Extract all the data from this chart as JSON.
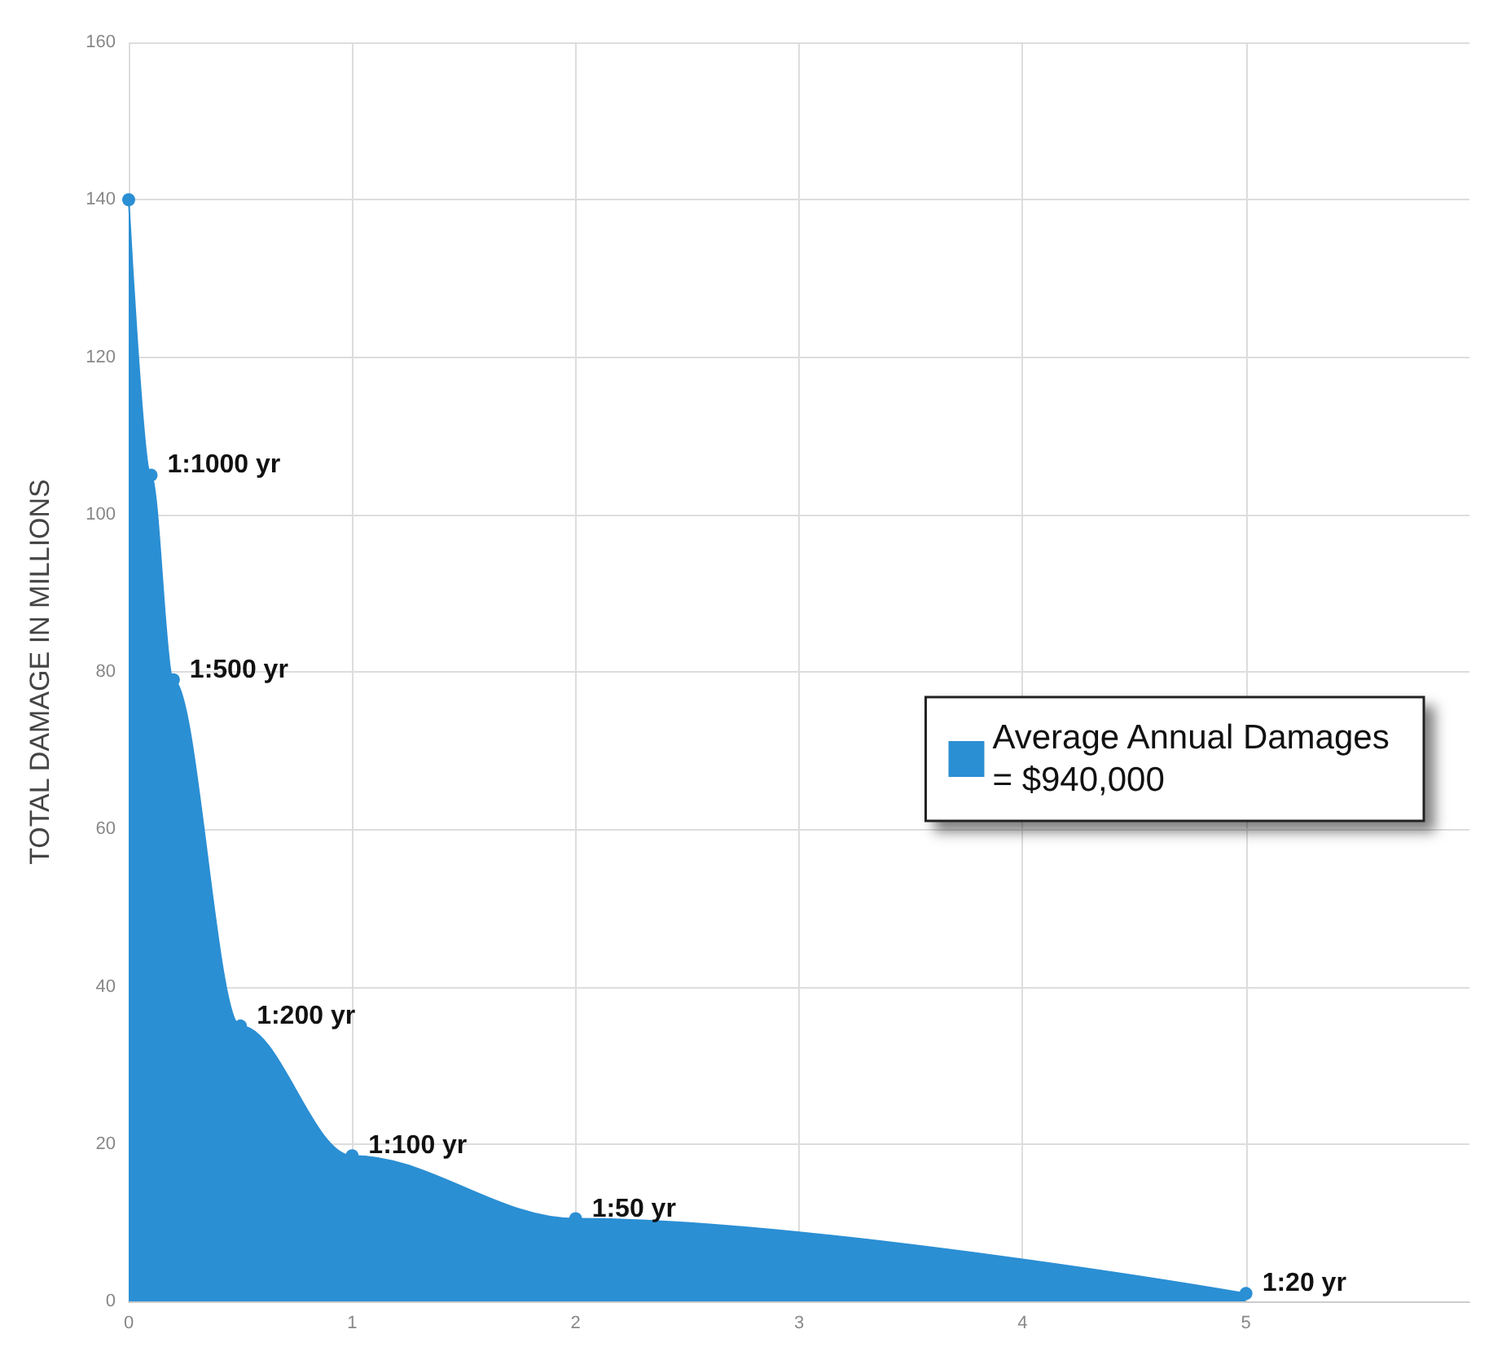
{
  "chart_data": {
    "type": "area",
    "ylabel": "TOTAL DAMAGE IN MILLIONS",
    "x": [
      0,
      0.1,
      0.2,
      0.5,
      1,
      2,
      5
    ],
    "series": [
      {
        "name": "Average Annual Damages\n= $940,000",
        "color": "#2b8fd4",
        "values": [
          140,
          105,
          79,
          35,
          18.5,
          10.5,
          1
        ]
      }
    ],
    "xlim": [
      0,
      6
    ],
    "xticks": [
      0,
      1,
      2,
      3,
      4,
      5
    ],
    "ylim": [
      0,
      160
    ],
    "yticks": [
      0,
      20,
      40,
      60,
      80,
      100,
      120,
      140,
      160
    ],
    "annotations": [
      {
        "text": "1:1000 yr",
        "x": 0.1,
        "y": 105
      },
      {
        "text": "1:500 yr",
        "x": 0.2,
        "y": 79
      },
      {
        "text": "1:200 yr",
        "x": 0.5,
        "y": 35
      },
      {
        "text": "1:100 yr",
        "x": 1,
        "y": 18.5
      },
      {
        "text": "1:50 yr",
        "x": 2,
        "y": 10.5
      },
      {
        "text": "1:20 yr",
        "x": 5,
        "y": 1
      }
    ],
    "grid": true,
    "legend": "right",
    "marker": "circle"
  }
}
